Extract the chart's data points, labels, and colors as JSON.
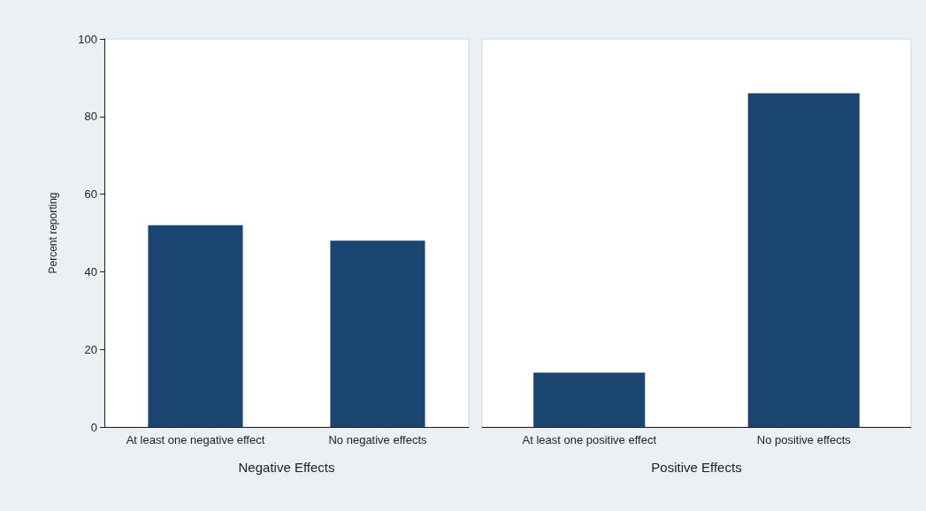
{
  "chart_data": [
    {
      "type": "bar",
      "categories": [
        "At least one negative effect",
        "No negative effects"
      ],
      "values": [
        52,
        48
      ],
      "color": "#1a4571",
      "xlabel": "Negative Effects",
      "ylabel": "Percent reporting",
      "ylim": [
        0,
        100
      ],
      "yticks": [
        0,
        20,
        40,
        60,
        80,
        100
      ],
      "grid": false
    },
    {
      "type": "bar",
      "categories": [
        "At least one positive effect",
        "No positive effects"
      ],
      "values": [
        14,
        86
      ],
      "color": "#1a4571",
      "xlabel": "Positive Effects",
      "ylim": [
        0,
        100
      ],
      "yticks": [
        0,
        20,
        40,
        60,
        80,
        100
      ],
      "grid": false,
      "tick_labels": "x"
    }
  ]
}
